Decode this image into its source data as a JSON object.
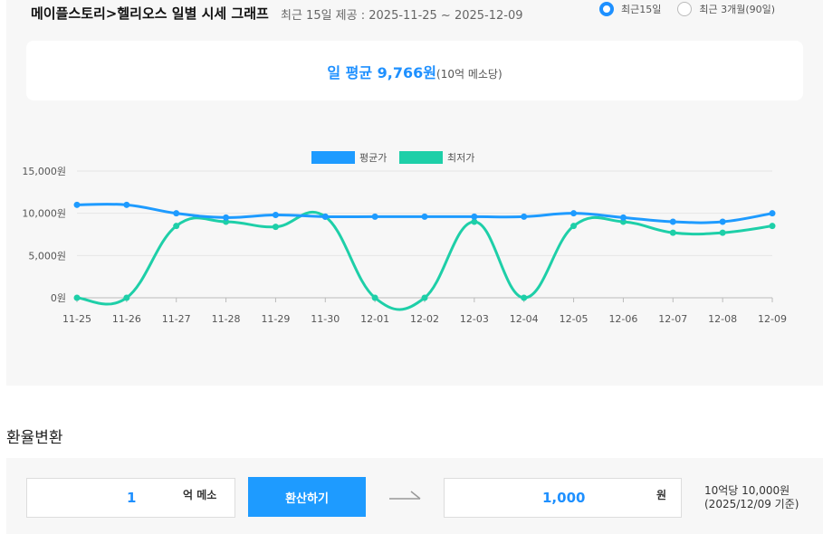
{
  "header": {
    "title": "메이플스토리>헬리오스 일별 시세 그래프",
    "subtitle": "최근 15일 제공 : 2025-11-25 ~ 2025-12-09",
    "radio_options": [
      {
        "label": "최근15일",
        "selected": true
      },
      {
        "label": "최근 3개월(90일)",
        "selected": false
      }
    ]
  },
  "summary": {
    "main": "일 평균 9,766원",
    "unit": "(10억 메소당)"
  },
  "chart_data": {
    "type": "line",
    "categories": [
      "11-25",
      "11-26",
      "11-27",
      "11-28",
      "11-29",
      "11-30",
      "12-01",
      "12-02",
      "12-03",
      "12-04",
      "12-05",
      "12-06",
      "12-07",
      "12-08",
      "12-09"
    ],
    "series": [
      {
        "name": "평균가",
        "color": "#1e9bff",
        "values": [
          11000,
          11000,
          10000,
          9500,
          9800,
          9600,
          9600,
          9600,
          9600,
          9600,
          10000,
          9500,
          9000,
          9000,
          10000
        ]
      },
      {
        "name": "최저가",
        "color": "#1ecfa8",
        "values": [
          0,
          0,
          8500,
          9000,
          8400,
          9600,
          0,
          0,
          9000,
          0,
          8500,
          9000,
          7700,
          7700,
          8500
        ]
      }
    ],
    "yticks": [
      "0원",
      "5,000원",
      "10,000원",
      "15,000원"
    ],
    "ylim": [
      0,
      15000
    ],
    "grid": true,
    "legend": "top-center"
  },
  "converter": {
    "section_title": "환율변환",
    "input_value": "1",
    "input_unit": "억 메소",
    "button_label": "환산하기",
    "output_value": "1,000",
    "output_unit": "원",
    "rate_line1": "10억당 10,000원",
    "rate_line2": "(2025/12/09 기준)"
  }
}
